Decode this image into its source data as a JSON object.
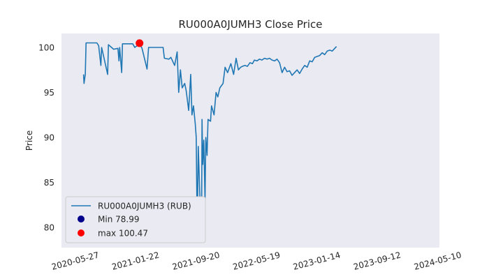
{
  "chart_data": {
    "type": "line",
    "title": "RU000A0JUMH3 Close Price",
    "xlabel": "",
    "ylabel": "Price",
    "xlim": [
      "2020-03-30",
      "2024-05-14"
    ],
    "ylim": [
      77.75,
      101.55
    ],
    "x_ticks": [
      "2020-05-27",
      "2021-01-22",
      "2021-09-20",
      "2022-05-19",
      "2023-01-14",
      "2023-09-12",
      "2024-05-10"
    ],
    "y_ticks": [
      80,
      85,
      90,
      95,
      100
    ],
    "grid": false,
    "legend_position": "lower-left",
    "colors": {
      "line": "#1f77b4",
      "min": "#00008b",
      "max": "#ff0000",
      "plot_bg": "#eaeaf2"
    },
    "series": [
      {
        "name": "RU000A0JUMH3 (RUB)",
        "points": [
          [
            "2020-06-26",
            97.0
          ],
          [
            "2020-06-28",
            96.0
          ],
          [
            "2020-07-03",
            97.0
          ],
          [
            "2020-07-06",
            100.5
          ],
          [
            "2020-08-18",
            100.5
          ],
          [
            "2020-08-25",
            100.2
          ],
          [
            "2020-09-03",
            98.0
          ],
          [
            "2020-09-06",
            100.0
          ],
          [
            "2020-09-30",
            97.0
          ],
          [
            "2020-10-03",
            100.3
          ],
          [
            "2020-10-24",
            99.8
          ],
          [
            "2020-11-10",
            99.9
          ],
          [
            "2020-11-14",
            98.5
          ],
          [
            "2020-11-17",
            100.0
          ],
          [
            "2020-11-25",
            97.2
          ],
          [
            "2020-11-28",
            100.4
          ],
          [
            "2021-01-08",
            100.4
          ],
          [
            "2021-01-16",
            100.0
          ],
          [
            "2021-01-26",
            100.2
          ],
          [
            "2021-02-04",
            100.47
          ],
          [
            "2021-02-14",
            99.9
          ],
          [
            "2021-03-06",
            97.6
          ],
          [
            "2021-03-12",
            100.0
          ],
          [
            "2021-05-09",
            100.0
          ],
          [
            "2021-05-14",
            98.8
          ],
          [
            "2021-06-01",
            98.7
          ],
          [
            "2021-06-09",
            98.9
          ],
          [
            "2021-06-24",
            98.0
          ],
          [
            "2021-07-04",
            99.5
          ],
          [
            "2021-07-10",
            95.0
          ],
          [
            "2021-07-17",
            97.5
          ],
          [
            "2021-07-24",
            95.5
          ],
          [
            "2021-08-03",
            96.0
          ],
          [
            "2021-08-09",
            95.2
          ],
          [
            "2021-08-19",
            93.0
          ],
          [
            "2021-08-27",
            97.0
          ],
          [
            "2021-09-01",
            92.5
          ],
          [
            "2021-09-07",
            93.5
          ],
          [
            "2021-09-14",
            91.5
          ],
          [
            "2021-09-18",
            90.0
          ],
          [
            "2021-09-22",
            79.2
          ],
          [
            "2021-09-26",
            89.0
          ],
          [
            "2021-10-02",
            84.0
          ],
          [
            "2021-10-09",
            78.99
          ],
          [
            "2021-10-11",
            92.0
          ],
          [
            "2021-10-14",
            87.0
          ],
          [
            "2021-10-18",
            89.7
          ],
          [
            "2021-10-23",
            83.0
          ],
          [
            "2021-10-26",
            90.0
          ],
          [
            "2021-10-31",
            88.0
          ],
          [
            "2021-11-04",
            92.0
          ],
          [
            "2021-11-14",
            91.8
          ],
          [
            "2021-11-18",
            93.5
          ],
          [
            "2021-11-28",
            92.5
          ],
          [
            "2021-12-06",
            95.0
          ],
          [
            "2021-12-13",
            94.5
          ],
          [
            "2021-12-21",
            95.5
          ],
          [
            "2022-01-03",
            96.0
          ],
          [
            "2022-01-11",
            97.8
          ],
          [
            "2022-01-21",
            97.2
          ],
          [
            "2022-02-03",
            98.2
          ],
          [
            "2022-02-14",
            97.0
          ],
          [
            "2022-02-24",
            98.8
          ],
          [
            "2022-03-05",
            97.5
          ],
          [
            "2022-03-14",
            97.8
          ],
          [
            "2022-03-21",
            97.9
          ],
          [
            "2022-03-31",
            98.0
          ],
          [
            "2022-04-10",
            97.9
          ],
          [
            "2022-04-20",
            98.3
          ],
          [
            "2022-04-30",
            98.2
          ],
          [
            "2022-05-08",
            98.6
          ],
          [
            "2022-05-18",
            98.5
          ],
          [
            "2022-05-28",
            98.7
          ],
          [
            "2022-06-07",
            98.6
          ],
          [
            "2022-06-17",
            98.8
          ],
          [
            "2022-06-27",
            98.7
          ],
          [
            "2022-07-07",
            98.8
          ],
          [
            "2022-07-17",
            98.6
          ],
          [
            "2022-07-27",
            98.5
          ],
          [
            "2022-08-06",
            98.7
          ],
          [
            "2022-08-16",
            98.3
          ],
          [
            "2022-08-26",
            97.2
          ],
          [
            "2022-09-05",
            97.8
          ],
          [
            "2022-09-15",
            97.3
          ],
          [
            "2022-09-25",
            97.4
          ],
          [
            "2022-10-05",
            96.9
          ],
          [
            "2022-10-15",
            97.2
          ],
          [
            "2022-10-25",
            97.5
          ],
          [
            "2022-11-04",
            97.1
          ],
          [
            "2022-11-14",
            97.6
          ],
          [
            "2022-11-24",
            98.0
          ],
          [
            "2022-12-04",
            97.8
          ],
          [
            "2022-12-14",
            98.5
          ],
          [
            "2022-12-24",
            98.4
          ],
          [
            "2023-01-03",
            98.9
          ],
          [
            "2023-01-13",
            99.0
          ],
          [
            "2023-01-23",
            99.1
          ],
          [
            "2023-02-02",
            99.4
          ],
          [
            "2023-02-12",
            99.2
          ],
          [
            "2023-02-22",
            99.6
          ],
          [
            "2023-03-04",
            99.7
          ],
          [
            "2023-03-14",
            99.6
          ],
          [
            "2023-03-24",
            99.9
          ],
          [
            "2023-03-31",
            100.1
          ]
        ]
      }
    ],
    "markers": [
      {
        "label": "Min 78.99",
        "x": "2021-10-09",
        "y": 78.99,
        "color": "#00008b"
      },
      {
        "label": "max 100.47",
        "x": "2021-02-04",
        "y": 100.47,
        "color": "#ff0000"
      }
    ]
  }
}
